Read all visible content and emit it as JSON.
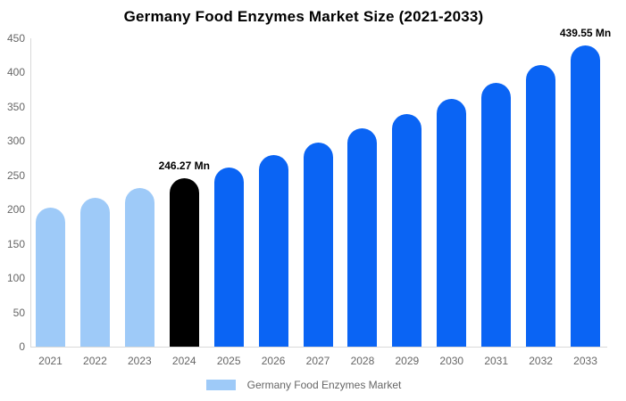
{
  "chart_data": {
    "type": "bar",
    "title": "Germany Food Enzymes Market Size (2021-2033)",
    "unit": "Mn",
    "categories": [
      "2021",
      "2022",
      "2023",
      "2024",
      "2025",
      "2026",
      "2027",
      "2028",
      "2029",
      "2030",
      "2031",
      "2032",
      "2033"
    ],
    "values": [
      203,
      217,
      231,
      246.27,
      262,
      280,
      298,
      318,
      340,
      362,
      385,
      411,
      439.55
    ],
    "bar_roles": [
      "historical",
      "historical",
      "historical",
      "base_year",
      "forecast",
      "forecast",
      "forecast",
      "forecast",
      "forecast",
      "forecast",
      "forecast",
      "forecast",
      "forecast"
    ],
    "palette": {
      "historical": "#9ecaf8",
      "base_year": "#000000",
      "forecast": "#0a64f4"
    },
    "annotations": [
      {
        "category": "2024",
        "text": "246.27 Mn"
      },
      {
        "category": "2033",
        "text": "439.55 Mn"
      }
    ],
    "ylim": [
      0,
      450
    ],
    "yticks": [
      0,
      50,
      100,
      150,
      200,
      250,
      300,
      350,
      400,
      450
    ],
    "grid": false,
    "axis_line_color": "#d9d9d9",
    "label_color": "#666666",
    "legend": {
      "position": "bottom",
      "label": "Germany Food Enzymes Market",
      "swatch_color": "#9ecaf8"
    }
  }
}
